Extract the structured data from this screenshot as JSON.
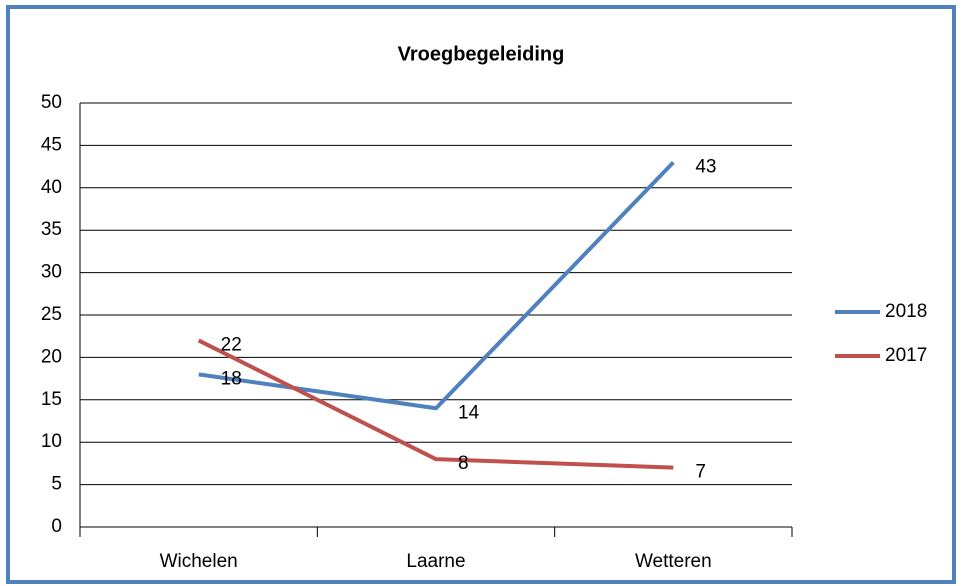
{
  "chart_data": {
    "type": "line",
    "title": "Vroegbegeleiding",
    "categories": [
      "Wichelen",
      "Laarne",
      "Wetteren"
    ],
    "series": [
      {
        "name": "2018",
        "color": "#4f81bd",
        "values": [
          18,
          14,
          43
        ]
      },
      {
        "name": "2017",
        "color": "#c0504d",
        "values": [
          22,
          8,
          7
        ]
      }
    ],
    "ylim": [
      0,
      50
    ],
    "yticks": [
      0,
      5,
      10,
      15,
      20,
      25,
      30,
      35,
      40,
      45,
      50
    ],
    "grid": true,
    "legend": "right"
  }
}
